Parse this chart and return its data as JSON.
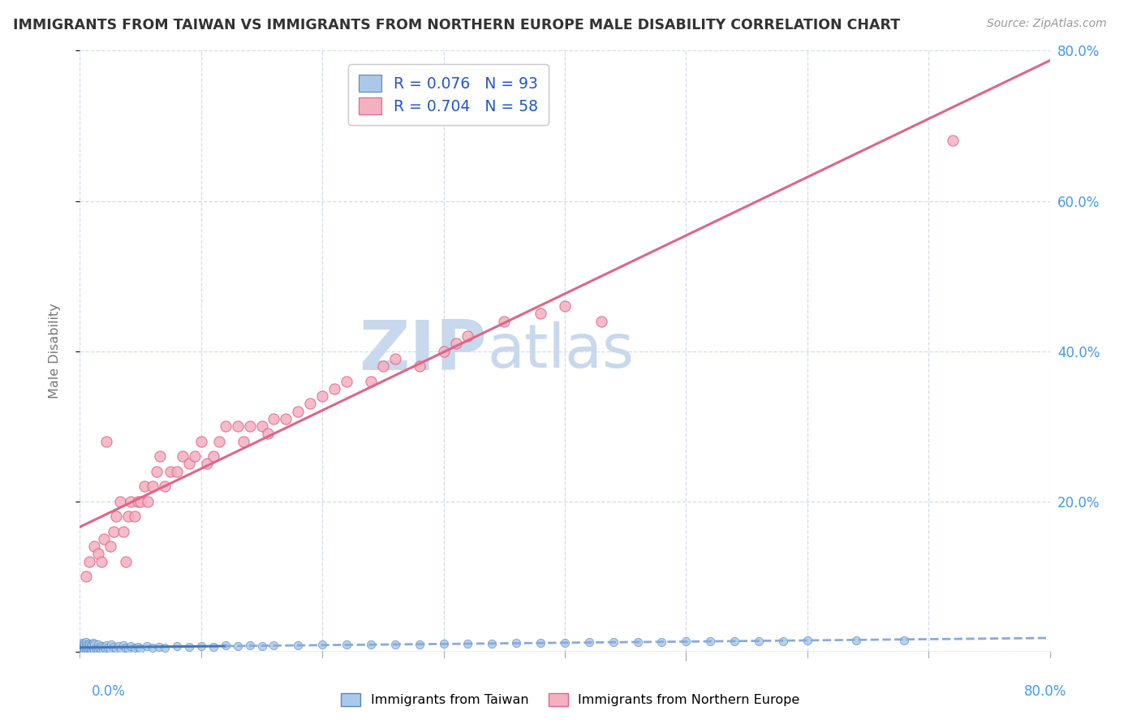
{
  "title": "IMMIGRANTS FROM TAIWAN VS IMMIGRANTS FROM NORTHERN EUROPE MALE DISABILITY CORRELATION CHART",
  "source": "Source: ZipAtlas.com",
  "ylabel": "Male Disability",
  "xlim": [
    0.0,
    0.8
  ],
  "ylim": [
    0.0,
    0.8
  ],
  "taiwan_color": "#aac8e8",
  "taiwan_edge": "#5588bb",
  "ne_color": "#f5b0c0",
  "ne_edge": "#dd6688",
  "taiwan_R": 0.076,
  "taiwan_N": 93,
  "ne_R": 0.704,
  "ne_N": 58,
  "taiwan_line_color_solid": "#4477bb",
  "taiwan_line_color_dash": "#88aadd",
  "ne_line_color": "#dd6688",
  "watermark_zip": "ZIP",
  "watermark_atlas": "atlas",
  "watermark_color": "#c8d8ed",
  "legend_color": "#2255cc",
  "background_color": "#ffffff",
  "grid_color": "#d0d8e8",
  "right_axis_color": "#4499ee",
  "bottom_axis_color": "#4499ee",
  "ne_scatter_x": [
    0.005,
    0.008,
    0.012,
    0.015,
    0.018,
    0.02,
    0.022,
    0.025,
    0.028,
    0.03,
    0.033,
    0.036,
    0.038,
    0.04,
    0.042,
    0.045,
    0.048,
    0.05,
    0.053,
    0.056,
    0.06,
    0.063,
    0.066,
    0.07,
    0.075,
    0.08,
    0.085,
    0.09,
    0.095,
    0.1,
    0.105,
    0.11,
    0.115,
    0.12,
    0.13,
    0.135,
    0.14,
    0.15,
    0.155,
    0.16,
    0.17,
    0.18,
    0.19,
    0.2,
    0.21,
    0.22,
    0.24,
    0.25,
    0.26,
    0.28,
    0.3,
    0.31,
    0.32,
    0.35,
    0.38,
    0.4,
    0.43,
    0.72
  ],
  "ne_scatter_y": [
    0.1,
    0.12,
    0.14,
    0.13,
    0.12,
    0.15,
    0.28,
    0.14,
    0.16,
    0.18,
    0.2,
    0.16,
    0.12,
    0.18,
    0.2,
    0.18,
    0.2,
    0.2,
    0.22,
    0.2,
    0.22,
    0.24,
    0.26,
    0.22,
    0.24,
    0.24,
    0.26,
    0.25,
    0.26,
    0.28,
    0.25,
    0.26,
    0.28,
    0.3,
    0.3,
    0.28,
    0.3,
    0.3,
    0.29,
    0.31,
    0.31,
    0.32,
    0.33,
    0.34,
    0.35,
    0.36,
    0.36,
    0.38,
    0.39,
    0.38,
    0.4,
    0.41,
    0.42,
    0.44,
    0.45,
    0.46,
    0.44,
    0.68
  ],
  "tw_scatter_x": [
    0.0,
    0.0,
    0.0,
    0.001,
    0.001,
    0.001,
    0.002,
    0.002,
    0.002,
    0.003,
    0.003,
    0.003,
    0.004,
    0.004,
    0.005,
    0.005,
    0.005,
    0.006,
    0.006,
    0.007,
    0.007,
    0.008,
    0.008,
    0.009,
    0.009,
    0.01,
    0.01,
    0.011,
    0.011,
    0.012,
    0.012,
    0.013,
    0.014,
    0.015,
    0.015,
    0.016,
    0.017,
    0.018,
    0.019,
    0.02,
    0.021,
    0.022,
    0.023,
    0.025,
    0.026,
    0.028,
    0.03,
    0.032,
    0.034,
    0.036,
    0.038,
    0.04,
    0.042,
    0.045,
    0.048,
    0.05,
    0.055,
    0.06,
    0.065,
    0.07,
    0.08,
    0.09,
    0.1,
    0.11,
    0.12,
    0.13,
    0.14,
    0.15,
    0.16,
    0.18,
    0.2,
    0.22,
    0.24,
    0.26,
    0.28,
    0.3,
    0.32,
    0.34,
    0.36,
    0.38,
    0.4,
    0.42,
    0.44,
    0.46,
    0.48,
    0.5,
    0.52,
    0.54,
    0.56,
    0.58,
    0.6,
    0.64,
    0.68
  ],
  "tw_scatter_y": [
    0.0,
    0.005,
    0.01,
    0.0,
    0.005,
    0.01,
    0.002,
    0.008,
    0.012,
    0.0,
    0.006,
    0.011,
    0.002,
    0.009,
    0.001,
    0.007,
    0.013,
    0.003,
    0.009,
    0.002,
    0.01,
    0.004,
    0.011,
    0.003,
    0.01,
    0.001,
    0.008,
    0.003,
    0.012,
    0.002,
    0.009,
    0.005,
    0.003,
    0.002,
    0.009,
    0.005,
    0.004,
    0.007,
    0.003,
    0.006,
    0.004,
    0.008,
    0.005,
    0.003,
    0.009,
    0.006,
    0.004,
    0.007,
    0.003,
    0.008,
    0.005,
    0.004,
    0.007,
    0.005,
    0.006,
    0.004,
    0.007,
    0.005,
    0.006,
    0.005,
    0.007,
    0.006,
    0.007,
    0.006,
    0.008,
    0.007,
    0.008,
    0.007,
    0.008,
    0.008,
    0.009,
    0.009,
    0.01,
    0.01,
    0.01,
    0.011,
    0.011,
    0.011,
    0.012,
    0.012,
    0.012,
    0.013,
    0.013,
    0.013,
    0.013,
    0.014,
    0.014,
    0.014,
    0.014,
    0.014,
    0.015,
    0.015,
    0.015
  ]
}
